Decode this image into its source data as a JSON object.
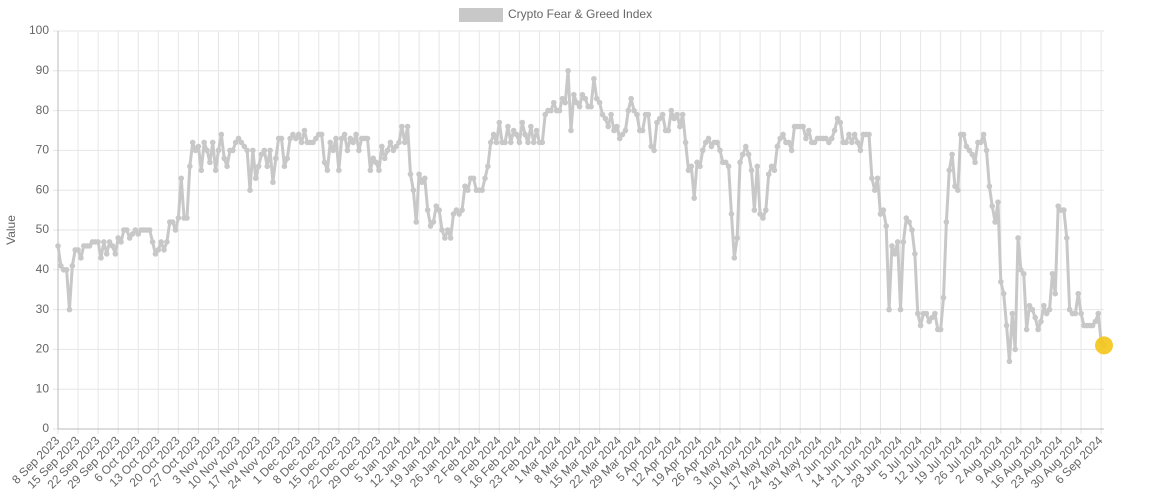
{
  "chart_data": {
    "type": "line",
    "y_label": "Value",
    "legend": "top",
    "grid": true,
    "ylim": [
      0,
      100
    ],
    "yticks": [
      0,
      10,
      20,
      30,
      40,
      50,
      60,
      70,
      80,
      90,
      100
    ],
    "highlight_color": "#f5c518",
    "categories": [
      "8 Sep 2023",
      null,
      null,
      null,
      null,
      null,
      null,
      "15 Sep 2023",
      null,
      null,
      null,
      null,
      null,
      null,
      "22 Sep 2023",
      null,
      null,
      null,
      null,
      null,
      null,
      "29 Sep 2023",
      null,
      null,
      null,
      null,
      null,
      null,
      "6 Oct 2023",
      null,
      null,
      null,
      null,
      null,
      null,
      "13 Oct 2023",
      null,
      null,
      null,
      null,
      null,
      null,
      "20 Oct 2023",
      null,
      null,
      null,
      null,
      null,
      null,
      "27 Oct 2023",
      null,
      null,
      null,
      null,
      null,
      null,
      "3 Nov 2023",
      null,
      null,
      null,
      null,
      null,
      null,
      "10 Nov 2023",
      null,
      null,
      null,
      null,
      null,
      null,
      "17 Nov 2023",
      null,
      null,
      null,
      null,
      null,
      null,
      "24 Nov 2023",
      null,
      null,
      null,
      null,
      null,
      null,
      "1 Dec 2023",
      null,
      null,
      null,
      null,
      null,
      null,
      "8 Dec 2023",
      null,
      null,
      null,
      null,
      null,
      null,
      "15 Dec 2023",
      null,
      null,
      null,
      null,
      null,
      null,
      "22 Dec 2023",
      null,
      null,
      null,
      null,
      null,
      null,
      "29 Dec 2023",
      null,
      null,
      null,
      null,
      null,
      null,
      "5 Jan 2024",
      null,
      null,
      null,
      null,
      null,
      null,
      "12 Jan 2024",
      null,
      null,
      null,
      null,
      null,
      null,
      "19 Jan 2024",
      null,
      null,
      null,
      null,
      null,
      null,
      "26 Jan 2024",
      null,
      null,
      null,
      null,
      null,
      null,
      "2 Feb 2024",
      null,
      null,
      null,
      null,
      null,
      null,
      "9 Feb 2024",
      null,
      null,
      null,
      null,
      null,
      null,
      "16 Feb 2024",
      null,
      null,
      null,
      null,
      null,
      null,
      "23 Feb 2024",
      null,
      null,
      null,
      null,
      null,
      null,
      "1 Mar 2024",
      null,
      null,
      null,
      null,
      null,
      null,
      "8 Mar 2024",
      null,
      null,
      null,
      null,
      null,
      null,
      "15 Mar 2024",
      null,
      null,
      null,
      null,
      null,
      null,
      "22 Mar 2024",
      null,
      null,
      null,
      null,
      null,
      null,
      "29 Mar 2024",
      null,
      null,
      null,
      null,
      null,
      null,
      "5 Apr 2024",
      null,
      null,
      null,
      null,
      null,
      null,
      "12 Apr 2024",
      null,
      null,
      null,
      null,
      null,
      null,
      "19 Apr 2024",
      null,
      null,
      null,
      null,
      null,
      null,
      "26 Apr 2024",
      null,
      null,
      null,
      null,
      null,
      null,
      "3 May 2024",
      null,
      null,
      null,
      null,
      null,
      null,
      "10 May 2024",
      null,
      null,
      null,
      null,
      null,
      null,
      "17 May 2024",
      null,
      null,
      null,
      null,
      null,
      null,
      "24 May 2024",
      null,
      null,
      null,
      null,
      null,
      null,
      "31 May 2024",
      null,
      null,
      null,
      null,
      null,
      null,
      "7 Jun 2024",
      null,
      null,
      null,
      null,
      null,
      null,
      "14 Jun 2024",
      null,
      null,
      null,
      null,
      null,
      null,
      "21 Jun 2024",
      null,
      null,
      null,
      null,
      null,
      null,
      "28 Jun 2024",
      null,
      null,
      null,
      null,
      null,
      null,
      "5 Jul 2024",
      null,
      null,
      null,
      null,
      null,
      null,
      "12 Jul 2024",
      null,
      null,
      null,
      null,
      null,
      null,
      "19 Jul 2024",
      null,
      null,
      null,
      null,
      null,
      null,
      "26 Jul 2024",
      null,
      null,
      null,
      null,
      null,
      null,
      "2 Aug 2024",
      null,
      null,
      null,
      null,
      null,
      null,
      "9 Aug 2024",
      null,
      null,
      null,
      null,
      null,
      null,
      "16 Aug 2024",
      null,
      null,
      null,
      null,
      null,
      null,
      "23 Aug 2024",
      null,
      null,
      null,
      null,
      null,
      null,
      "30 Aug 2024",
      null,
      null,
      null,
      null,
      null,
      null,
      "6 Sep 2024",
      null
    ],
    "series": [
      {
        "name": "Crypto Fear & Greed Index",
        "color": "#c8c8c8",
        "values": [
          46,
          41,
          40,
          40,
          30,
          41,
          45,
          45,
          43,
          46,
          46,
          46,
          47,
          47,
          47,
          43,
          47,
          44,
          47,
          46,
          44,
          48,
          47,
          50,
          50,
          48,
          49,
          50,
          49,
          50,
          50,
          50,
          50,
          47,
          44,
          45,
          47,
          45,
          47,
          52,
          52,
          50,
          53,
          63,
          53,
          53,
          66,
          72,
          70,
          71,
          65,
          72,
          70,
          67,
          72,
          65,
          70,
          74,
          68,
          66,
          70,
          70,
          72,
          73,
          72,
          71,
          70,
          60,
          70,
          63,
          66,
          69,
          70,
          66,
          70,
          62,
          68,
          73,
          73,
          66,
          68,
          73,
          74,
          73,
          74,
          72,
          75,
          72,
          72,
          72,
          73,
          74,
          74,
          67,
          65,
          72,
          70,
          73,
          65,
          73,
          74,
          70,
          73,
          72,
          74,
          70,
          73,
          73,
          73,
          65,
          68,
          67,
          65,
          71,
          68,
          70,
          72,
          70,
          71,
          72,
          76,
          72,
          76,
          64,
          60,
          52,
          64,
          62,
          63,
          55,
          51,
          52,
          56,
          55,
          50,
          48,
          50,
          48,
          54,
          55,
          54,
          55,
          61,
          60,
          63,
          63,
          60,
          60,
          60,
          63,
          66,
          72,
          74,
          72,
          77,
          72,
          72,
          76,
          72,
          75,
          74,
          72,
          77,
          74,
          72,
          76,
          72,
          75,
          72,
          72,
          79,
          80,
          80,
          82,
          80,
          80,
          83,
          82,
          90,
          75,
          84,
          82,
          81,
          84,
          83,
          81,
          81,
          88,
          83,
          82,
          79,
          78,
          76,
          79,
          75,
          76,
          73,
          74,
          75,
          80,
          83,
          80,
          79,
          75,
          75,
          79,
          79,
          71,
          70,
          77,
          78,
          79,
          75,
          75,
          80,
          78,
          79,
          76,
          79,
          72,
          65,
          66,
          58,
          67,
          66,
          70,
          72,
          73,
          71,
          72,
          72,
          70,
          67,
          67,
          66,
          54,
          43,
          48,
          67,
          69,
          71,
          69,
          65,
          55,
          66,
          54,
          53,
          55,
          64,
          66,
          65,
          71,
          73,
          74,
          72,
          72,
          70,
          76,
          76,
          76,
          76,
          73,
          75,
          72,
          72,
          73,
          73,
          73,
          73,
          72,
          73,
          75,
          78,
          77,
          72,
          72,
          74,
          72,
          74,
          72,
          70,
          74,
          74,
          74,
          63,
          60,
          63,
          54,
          55,
          51,
          30,
          46,
          44,
          47,
          30,
          47,
          53,
          52,
          50,
          44,
          29,
          26,
          29,
          29,
          27,
          28,
          29,
          25,
          25,
          33,
          52,
          65,
          69,
          61,
          60,
          74,
          74,
          71,
          70,
          69,
          67,
          72,
          72,
          74,
          70,
          61,
          56,
          52,
          57,
          37,
          34,
          26,
          17,
          29,
          20,
          48,
          40,
          39,
          25,
          31,
          30,
          28,
          25,
          27,
          31,
          29,
          30,
          39,
          34,
          56,
          55,
          55,
          48,
          30,
          29,
          29,
          34,
          29,
          26,
          26,
          26,
          26,
          27,
          29,
          22,
          21
        ]
      }
    ]
  }
}
